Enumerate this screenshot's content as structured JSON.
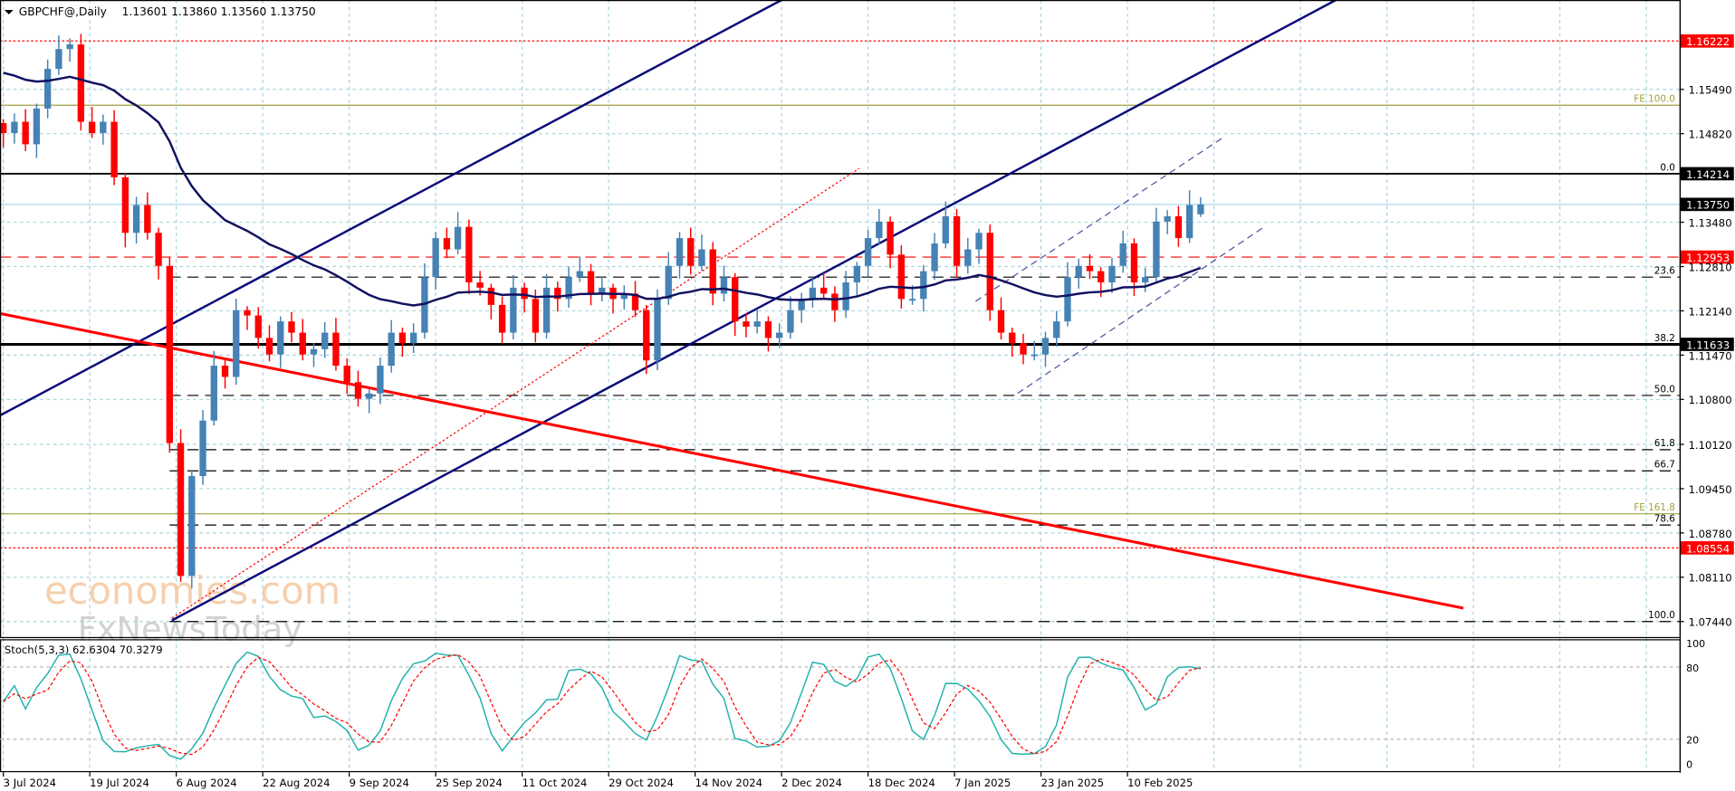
{
  "header": {
    "symbol_label": "GBPCHF@,Daily",
    "ohlc": "1.13601 1.13860 1.13560 1.13750"
  },
  "indicator": {
    "label": "Stoch(5,3,3) 62.6304 70.3279",
    "axis_ticks": [
      "100",
      "80",
      "20",
      "0"
    ]
  },
  "watermark": {
    "line1": "economies.com",
    "line2": "FxNewsToday"
  },
  "colors": {
    "up": "#4682b4",
    "down": "#ff0000",
    "ma": "#101060",
    "channel": "#0a0a7a",
    "red_trend": "#ff0000",
    "fib": "#000000",
    "fe": "#a0a040",
    "grid": "#a8d4dc"
  },
  "chart_data": {
    "type": "candlestick",
    "title": "GBPCHF@,Daily",
    "ylim": [
      1.071,
      1.166
    ],
    "y_ticks": [
      "1.15490",
      "1.14820",
      "1.13480",
      "1.12810",
      "1.12140",
      "1.11470",
      "1.10800",
      "1.10120",
      "1.09450",
      "1.08780",
      "1.08110",
      "1.07440"
    ],
    "x_labels": [
      "3 Jul 2024",
      "19 Jul 2024",
      "6 Aug 2024",
      "22 Aug 2024",
      "9 Sep 2024",
      "25 Sep 2024",
      "11 Oct 2024",
      "29 Oct 2024",
      "14 Nov 2024",
      "2 Dec 2024",
      "18 Dec 2024",
      "7 Jan 2025",
      "23 Jan 2025",
      "10 Feb 2025"
    ],
    "closes": [
      1.1483,
      1.15,
      1.1466,
      1.152,
      1.158,
      1.161,
      1.1617,
      1.15,
      1.1483,
      1.15,
      1.1416,
      1.1332,
      1.1374,
      1.1332,
      1.1282,
      1.1014,
      1.0813,
      1.0964,
      1.1048,
      1.1131,
      1.1114,
      1.1215,
      1.1207,
      1.1173,
      1.1148,
      1.1198,
      1.1181,
      1.1148,
      1.1156,
      1.1181,
      1.1131,
      1.1106,
      1.1081,
      1.1089,
      1.1131,
      1.1181,
      1.1165,
      1.1181,
      1.1265,
      1.1324,
      1.1307,
      1.1341,
      1.1257,
      1.1249,
      1.1223,
      1.1181,
      1.1249,
      1.1232,
      1.1181,
      1.1249,
      1.1232,
      1.1265,
      1.1274,
      1.124,
      1.1249,
      1.1232,
      1.124,
      1.1215,
      1.1139,
      1.1232,
      1.1282,
      1.1324,
      1.1282,
      1.1307,
      1.124,
      1.1265,
      1.1198,
      1.119,
      1.1198,
      1.1173,
      1.1181,
      1.1215,
      1.1232,
      1.1249,
      1.124,
      1.1215,
      1.1257,
      1.1282,
      1.1324,
      1.1349,
      1.1299,
      1.1232,
      1.1232,
      1.1274,
      1.1316,
      1.1357,
      1.1282,
      1.1307,
      1.1332,
      1.1215,
      1.1181,
      1.1165,
      1.1148,
      1.1148,
      1.1173,
      1.1198,
      1.1265,
      1.1282,
      1.1274,
      1.1257,
      1.1282,
      1.1316,
      1.1257,
      1.1265,
      1.1349,
      1.1357,
      1.1324,
      1.1374,
      1.1375
    ],
    "last_bar": {
      "open": 1.13601,
      "high": 1.1386,
      "low": 1.1356,
      "close": 1.1375
    },
    "levels": [
      {
        "price": 1.16222,
        "label": "1.16222",
        "kind": "red-dotted",
        "tag": "red"
      },
      {
        "price": 1.1525,
        "label": "FE 100.0",
        "kind": "fe"
      },
      {
        "price": 1.14214,
        "label": "1.14214",
        "kind": "black-solid",
        "tag": "black",
        "fib": "0.0"
      },
      {
        "price": 1.1375,
        "label": "1.13750",
        "kind": "bid",
        "tag": "black"
      },
      {
        "price": 1.12953,
        "label": "1.12953",
        "kind": "red-dashed",
        "tag": "red"
      },
      {
        "price": 1.1265,
        "label": "23.6",
        "kind": "fib-dashed"
      },
      {
        "price": 1.11633,
        "label": "1.11633",
        "kind": "black-thick",
        "tag": "black",
        "fib": "38.2"
      },
      {
        "price": 1.1086,
        "label": "50.0",
        "kind": "fib-dashed"
      },
      {
        "price": 1.1004,
        "label": "61.8",
        "kind": "fib-dashed"
      },
      {
        "price": 1.0972,
        "label": "66.7",
        "kind": "fib-dashed"
      },
      {
        "price": 1.0907,
        "label": "FE 161.8",
        "kind": "fe"
      },
      {
        "price": 1.089,
        "label": "78.6",
        "kind": "fib-dashed"
      },
      {
        "price": 1.08554,
        "label": "1.08554",
        "kind": "red-dotted",
        "tag": "red"
      },
      {
        "price": 1.0744,
        "label": "100.0",
        "kind": "fib-dashed"
      }
    ]
  }
}
